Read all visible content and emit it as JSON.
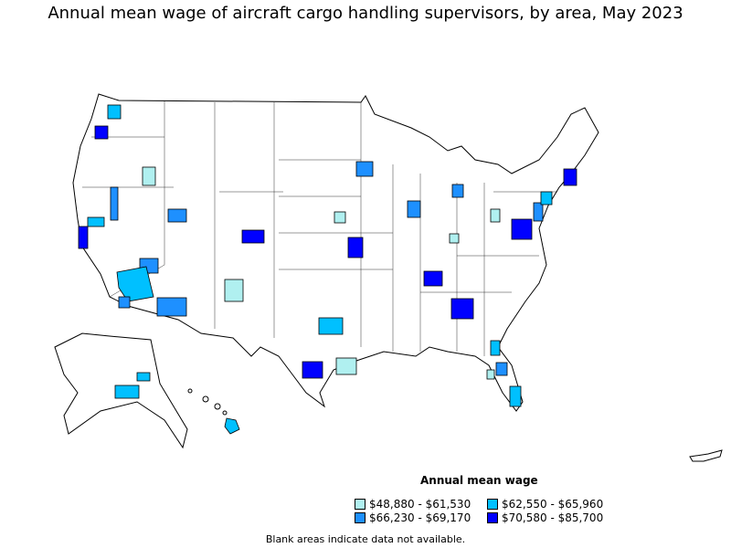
{
  "title": "Annual mean wage of aircraft cargo handling supervisors, by area, May 2023",
  "legend": {
    "title": "Annual mean wage",
    "items": [
      {
        "label": "$48,880 - $61,530",
        "color": "#b0f0f0"
      },
      {
        "label": "$62,550 - $65,960",
        "color": "#00c0ff"
      },
      {
        "label": "$66,230 - $69,170",
        "color": "#1e90ff"
      },
      {
        "label": "$70,580 - $85,700",
        "color": "#0000ff"
      }
    ]
  },
  "note": "Blank areas indicate data not available."
}
